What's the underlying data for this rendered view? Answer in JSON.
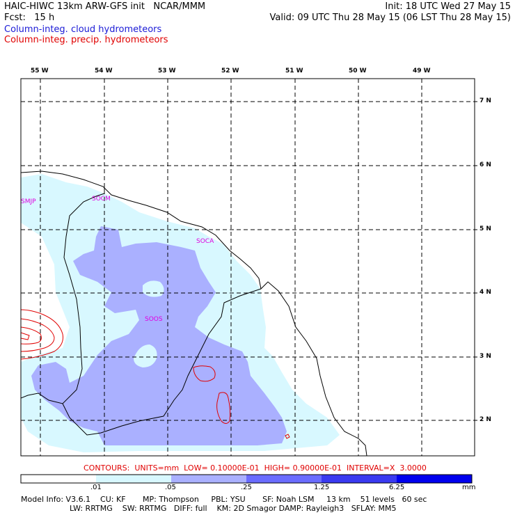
{
  "header": {
    "line1_left": "HAIC-HIWC 13km ARW-GFS init   NCAR/MMM",
    "line1_right": "Init: 18 UTC Wed 27 May 15",
    "line2_left": "Fcst:   15 h",
    "line2_right": "Valid: 09 UTC Thu 28 May 15 (06 LST Thu 28 May 15)",
    "field1": "Column-integ. cloud hydrometeors",
    "field2": "Column-integ. precip. hydrometeors"
  },
  "axes": {
    "lon_labels": [
      "55 W",
      "54 W",
      "53 W",
      "52 W",
      "51 W",
      "50 W",
      "49 W"
    ],
    "lat_labels": [
      "7 N",
      "6 N",
      "5 N",
      "4 N",
      "3 N",
      "2 N"
    ]
  },
  "stations": [
    "SMJP",
    "SOCM",
    "SOCA",
    "SOOS"
  ],
  "contours_info": "CONTOURS:  UNITS=mm  LOW= 0.10000E-01  HIGH= 0.90000E-01  INTERVAL=X  3.0000",
  "colorbar": {
    "labels": [
      ".01",
      ".05",
      ".25",
      "1.25",
      "6.25"
    ],
    "unit": "mm",
    "colors": [
      "#ffffff",
      "#d8f8ff",
      "#aab0ff",
      "#6a6cff",
      "#3a3af0",
      "#0000ee"
    ]
  },
  "model_info": {
    "line1": "Model Info: V3.6.1    CU: KF       MP: Thompson     PBL: YSU       SF: Noah LSM     13 km    51 levels   60 sec",
    "line2": "LW: RRTMG    SW: RRTMG   DIFF: full    KM: 2D Smagor DAMP: Rayleigh3   SFLAY: MM5"
  }
}
